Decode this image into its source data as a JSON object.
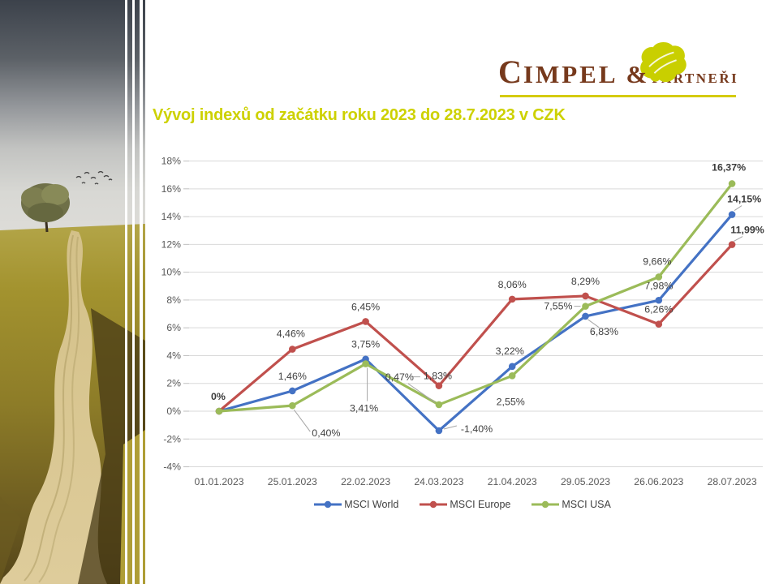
{
  "slide": {
    "title": "Vývoj indexů od začátku roku 2023 do 28.7.2023 v CZK",
    "title_color": "#CDD100",
    "background": "#FFFFFF"
  },
  "logo": {
    "text_primary_initial": "C",
    "text_primary_rest": "IMPEL",
    "ampersand": "&",
    "text_secondary": "PARTNEŘI",
    "brand_brown": "#76391C",
    "brand_yellow": "#C9CF00"
  },
  "chart_data": {
    "type": "line",
    "title": "Vývoj indexů od začátku roku 2023 do 28.7.2023 v CZK",
    "categories": [
      "01.01.2023",
      "25.01.2023",
      "22.02.2023",
      "24.03.2023",
      "21.04.2023",
      "29.05.2023",
      "26.06.2023",
      "28.07.2023"
    ],
    "series": [
      {
        "name": "MSCI World",
        "color": "#4472C4",
        "values": [
          0,
          1.46,
          3.75,
          -1.4,
          3.22,
          6.83,
          7.98,
          14.15
        ],
        "labels": [
          "0%",
          "1,46%",
          "3,75%",
          "-1,40%",
          "3,22%",
          "6,83%",
          "7,98%",
          "14,15%"
        ]
      },
      {
        "name": "MSCI Europe",
        "color": "#C0504D",
        "values": [
          0,
          4.46,
          6.45,
          1.83,
          8.06,
          8.29,
          6.26,
          11.99
        ],
        "labels": [
          "",
          "4,46%",
          "6,45%",
          "1,83%",
          "8,06%",
          "8,29%",
          "6,26%",
          "11,99%"
        ]
      },
      {
        "name": "MSCI USA",
        "color": "#9BBB59",
        "values": [
          0,
          0.4,
          3.41,
          0.47,
          2.55,
          7.55,
          9.66,
          16.37
        ],
        "labels": [
          "",
          "0,40%",
          "3,41%",
          "0,47%",
          "2,55%",
          "7,55%",
          "9,66%",
          "16,37%"
        ]
      }
    ],
    "y_axis": {
      "min": -4,
      "max": 18,
      "step": 2,
      "tick_labels": [
        "18%",
        "16%",
        "14%",
        "12%",
        "10%",
        "8%",
        "6%",
        "4%",
        "2%",
        "0%",
        "-2%",
        "-4%"
      ]
    },
    "xlabel": "",
    "ylabel": "",
    "grid": true,
    "legend_position": "bottom",
    "axis_text_color": "#595959",
    "label_text_color": "#404040",
    "gridline_color": "#D9D9D9"
  }
}
